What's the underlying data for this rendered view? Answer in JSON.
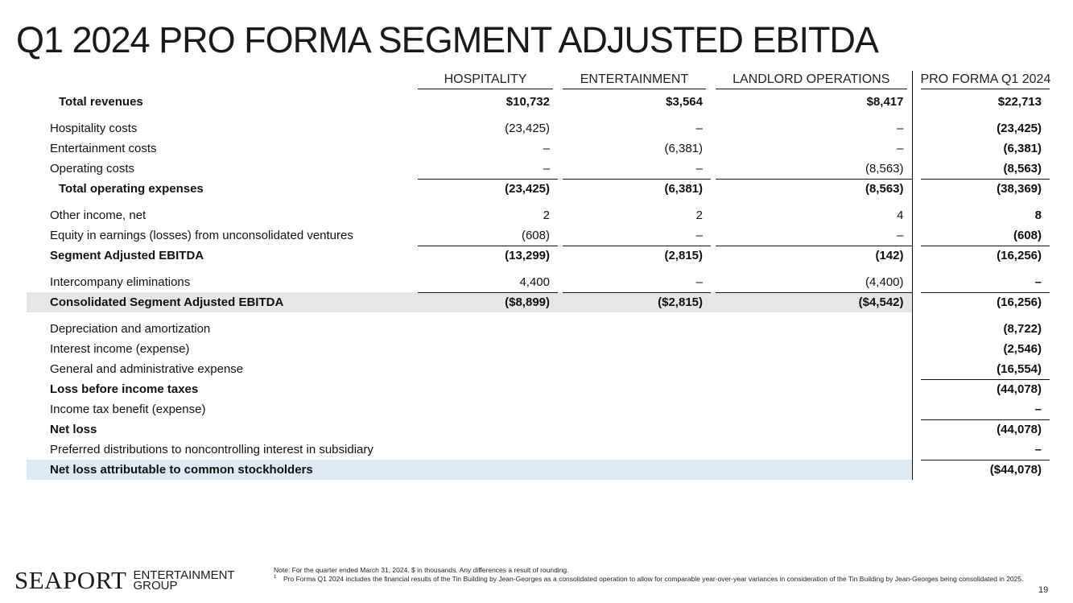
{
  "title": "Q1 2024 PRO FORMA SEGMENT ADJUSTED EBITDA",
  "columns": {
    "hospitality": "HOSPITALITY",
    "entertainment": "ENTERTAINMENT",
    "landlord": "LANDLORD OPERATIONS",
    "proforma": "PRO FORMA Q1 2024"
  },
  "rows": [
    {
      "label": "Total revenues",
      "h": "$10,732",
      "e": "$3,564",
      "l": "$8,417",
      "p": "$22,713"
    },
    {
      "label": "Hospitality costs",
      "h": "(23,425)",
      "e": "–",
      "l": "–",
      "p": "(23,425)"
    },
    {
      "label": "Entertainment costs",
      "h": "–",
      "e": "(6,381)",
      "l": "–",
      "p": "(6,381)"
    },
    {
      "label": "Operating costs",
      "h": "–",
      "e": "–",
      "l": "(8,563)",
      "p": "(8,563)"
    },
    {
      "label": "Total operating expenses",
      "h": "(23,425)",
      "e": "(6,381)",
      "l": "(8,563)",
      "p": "(38,369)"
    },
    {
      "label": "Other income, net",
      "h": "2",
      "e": "2",
      "l": "4",
      "p": "8"
    },
    {
      "label": "Equity in earnings (losses) from unconsolidated ventures",
      "h": "(608)",
      "e": "–",
      "l": "–",
      "p": "(608)"
    },
    {
      "label": "Segment Adjusted EBITDA",
      "h": "(13,299)",
      "e": "(2,815)",
      "l": "(142)",
      "p": "(16,256)"
    },
    {
      "label": "Intercompany eliminations",
      "h": "4,400",
      "e": "–",
      "l": "(4,400)",
      "p": "–"
    },
    {
      "label": "Consolidated Segment Adjusted EBITDA",
      "h": "($8,899)",
      "e": "($2,815)",
      "l": "($4,542)",
      "p": "(16,256)"
    },
    {
      "label": "Depreciation and amortization",
      "p": "(8,722)"
    },
    {
      "label": "Interest income (expense)",
      "p": "(2,546)"
    },
    {
      "label": "General and administrative expense",
      "p": "(16,554)"
    },
    {
      "label": "Loss before income taxes",
      "p": "(44,078)"
    },
    {
      "label": "Income tax benefit (expense)",
      "p": "–"
    },
    {
      "label": "Net loss",
      "p": "(44,078)"
    },
    {
      "label": "Preferred distributions to noncontrolling interest in subsidiary",
      "p": "–"
    },
    {
      "label": "Net loss attributable to common stockholders",
      "p": "($44,078)"
    }
  ],
  "logo": {
    "main": "SEAPORT",
    "sub1": "ENTERTAINMENT",
    "sub2": "GROUP"
  },
  "note": "Note: For the quarter ended March 31, 2024. $ in thousands. Any differences a result of rounding.",
  "footnote_marker": "1",
  "footnote": "Pro Forma Q1 2024 includes the financial results of the Tin Building by Jean-Georges as a consolidated operation to allow for comparable year-over-year variances in consideration of the Tin Building by Jean-Georges being consolidated in 2025.",
  "page_number": "19",
  "colors": {
    "shade_gray": "#e6e6e6",
    "shade_blue": "#dde9f5"
  }
}
